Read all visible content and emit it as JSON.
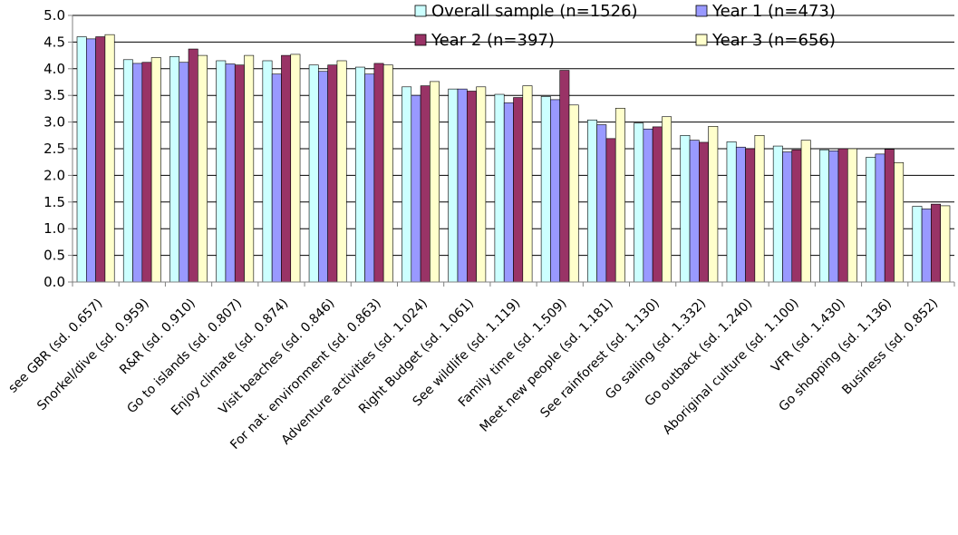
{
  "chart_data": {
    "type": "bar",
    "categories": [
      "see GBR (sd. 0.657)",
      "Snorkel/dive (sd. 0.959)",
      "R&R (sd. 0.910)",
      "Go to islands (sd. 0.807)",
      "Enjoy climate (sd. 0.874)",
      "Visit beaches (sd. 0.846)",
      "For nat. environment (sd. 0.863)",
      "Adventure activities (sd. 1.024)",
      "Right Budget (sd. 1.061)",
      "See wildlife (sd. 1.119)",
      "Family time (sd. 1.509)",
      "Meet new people (sd. 1.181)",
      "See rainforest (sd. 1.130)",
      "Go sailing (sd. 1.332)",
      "Go outback (sd. 1.240)",
      "Aboriginal culture (sd. 1.100)",
      "VFR (sd. 1.430)",
      "Go shopping (sd. 1.136)",
      "Business (sd. 0.852)"
    ],
    "series": [
      {
        "name": "Overall sample (n=1526)",
        "color": "#CCFFFF",
        "values": [
          4.6,
          4.17,
          4.23,
          4.15,
          4.15,
          4.07,
          4.03,
          3.66,
          3.62,
          3.52,
          3.48,
          3.04,
          2.98,
          2.75,
          2.63,
          2.55,
          2.48,
          2.34,
          1.42
        ]
      },
      {
        "name": "Year 1 (n=473)",
        "color": "#9999FF",
        "values": [
          4.56,
          4.1,
          4.12,
          4.09,
          3.9,
          3.95,
          3.9,
          3.5,
          3.62,
          3.36,
          3.42,
          2.95,
          2.87,
          2.66,
          2.53,
          2.44,
          2.46,
          2.4,
          1.37
        ]
      },
      {
        "name": "Year 2 (n=397)",
        "color": "#993366",
        "values": [
          4.6,
          4.12,
          4.37,
          4.07,
          4.25,
          4.07,
          4.1,
          3.68,
          3.58,
          3.46,
          3.97,
          2.69,
          2.91,
          2.62,
          2.5,
          2.48,
          2.5,
          2.49,
          1.46
        ]
      },
      {
        "name": "Year 3 (n=656)",
        "color": "#FFFFCC",
        "values": [
          4.64,
          4.21,
          4.25,
          4.25,
          4.27,
          4.15,
          4.07,
          3.76,
          3.66,
          3.68,
          3.32,
          3.26,
          3.1,
          2.92,
          2.75,
          2.66,
          2.5,
          2.24,
          1.43
        ]
      }
    ],
    "yticks": [
      "0.0",
      "0.5",
      "1.0",
      "1.5",
      "2.0",
      "2.5",
      "3.0",
      "3.5",
      "4.0",
      "4.5",
      "5.0"
    ],
    "ylim": [
      0,
      5
    ],
    "grid": true,
    "legend": "top-right"
  }
}
